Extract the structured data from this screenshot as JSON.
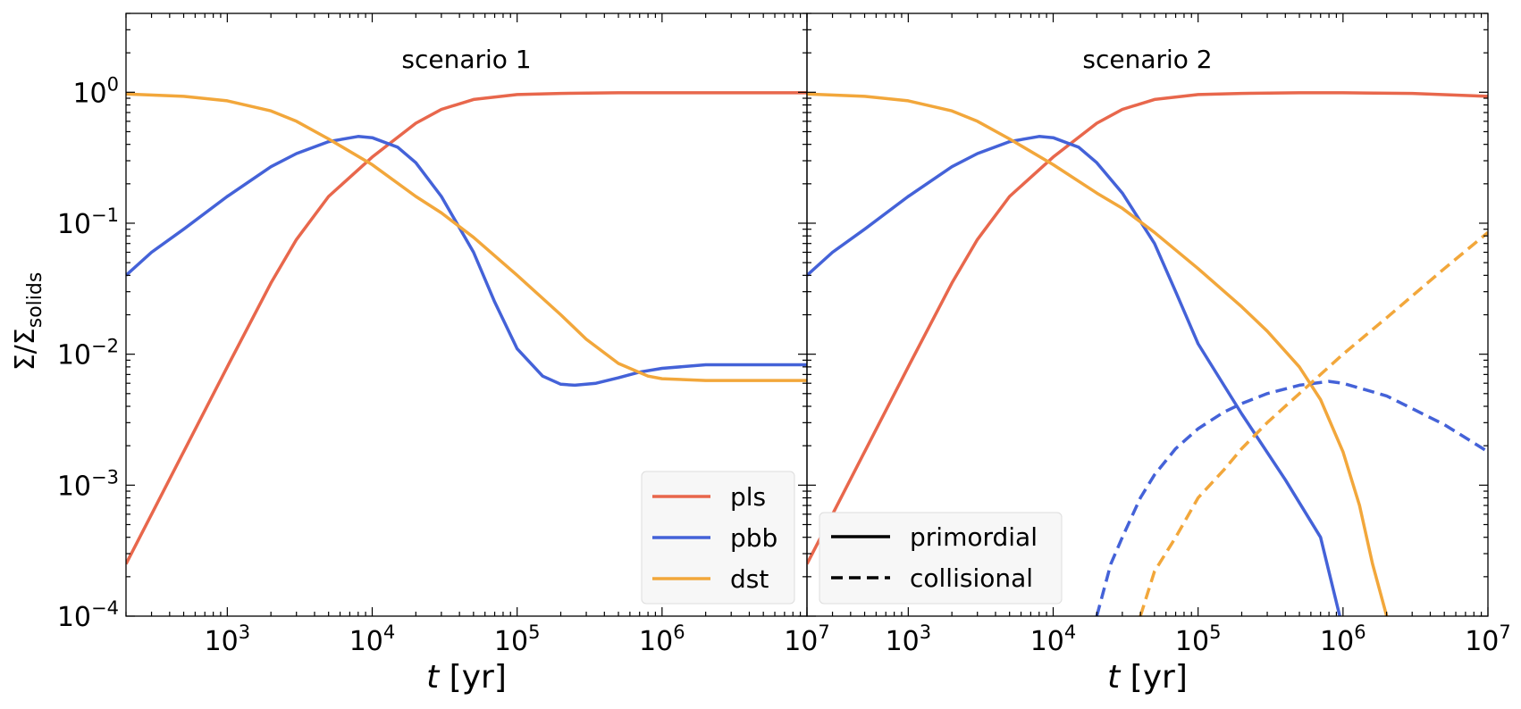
{
  "chart_data": [
    {
      "type": "line",
      "title": "scenario 1",
      "xlabel_italic": "t",
      "xlabel_rest": " [yr]",
      "ylabel_main": "Σ/Σ",
      "ylabel_sub": "solids",
      "xscale": "log",
      "yscale": "log",
      "xlim": [
        200,
        10000000
      ],
      "ylim": [
        0.0001,
        4
      ],
      "x_ticks": [
        {
          "value": 1000,
          "base": "10",
          "exp": "3"
        },
        {
          "value": 10000,
          "base": "10",
          "exp": "4"
        },
        {
          "value": 100000,
          "base": "10",
          "exp": "5"
        },
        {
          "value": 1000000,
          "base": "10",
          "exp": "6"
        },
        {
          "value": 10000000,
          "base": "10",
          "exp": "7"
        }
      ],
      "y_ticks": [
        {
          "value": 1,
          "base": "10",
          "exp": "0"
        },
        {
          "value": 0.1,
          "base": "10",
          "exp": "−1"
        },
        {
          "value": 0.01,
          "base": "10",
          "exp": "−2"
        },
        {
          "value": 0.001,
          "base": "10",
          "exp": "−3"
        },
        {
          "value": 0.0001,
          "base": "10",
          "exp": "−4"
        }
      ],
      "series": [
        {
          "name": "pls",
          "color": "#e8674c",
          "dash": "solid",
          "x": [
            200,
            300,
            500,
            1000,
            2000,
            3000,
            5000,
            10000,
            20000,
            30000,
            50000,
            100000,
            200000,
            500000,
            1000000,
            3000000,
            10000000
          ],
          "y": [
            0.00025,
            0.0006,
            0.0018,
            0.008,
            0.035,
            0.075,
            0.16,
            0.32,
            0.58,
            0.74,
            0.88,
            0.96,
            0.98,
            0.99,
            0.99,
            0.99,
            0.99
          ]
        },
        {
          "name": "pbb",
          "color": "#4462d8",
          "dash": "solid",
          "x": [
            200,
            300,
            500,
            1000,
            2000,
            3000,
            5000,
            8000,
            10000,
            15000,
            20000,
            30000,
            50000,
            70000,
            100000,
            150000,
            200000,
            250000,
            350000,
            500000,
            700000,
            1000000,
            2000000,
            5000000,
            10000000
          ],
          "y": [
            0.04,
            0.06,
            0.09,
            0.16,
            0.27,
            0.34,
            0.42,
            0.46,
            0.45,
            0.38,
            0.29,
            0.16,
            0.06,
            0.025,
            0.011,
            0.0068,
            0.0059,
            0.0058,
            0.006,
            0.0066,
            0.0073,
            0.0078,
            0.0083,
            0.0083,
            0.0083
          ]
        },
        {
          "name": "dst",
          "color": "#f2a73b",
          "dash": "solid",
          "x": [
            200,
            500,
            1000,
            2000,
            3000,
            5000,
            10000,
            20000,
            30000,
            50000,
            100000,
            200000,
            300000,
            500000,
            800000,
            1000000,
            2000000,
            5000000,
            10000000
          ],
          "y": [
            0.97,
            0.93,
            0.86,
            0.72,
            0.6,
            0.44,
            0.28,
            0.16,
            0.12,
            0.078,
            0.04,
            0.02,
            0.013,
            0.0085,
            0.0068,
            0.0065,
            0.0063,
            0.0063,
            0.0063
          ]
        }
      ],
      "legend": {
        "placement": "lower right",
        "entries": [
          "pls",
          "pbb",
          "dst"
        ]
      }
    },
    {
      "type": "line",
      "title": "scenario 2",
      "xlabel_italic": "t",
      "xlabel_rest": " [yr]",
      "xscale": "log",
      "yscale": "log",
      "xlim": [
        200,
        10000000
      ],
      "ylim": [
        0.0001,
        4
      ],
      "x_ticks": [
        {
          "value": 1000,
          "base": "10",
          "exp": "3"
        },
        {
          "value": 10000,
          "base": "10",
          "exp": "4"
        },
        {
          "value": 100000,
          "base": "10",
          "exp": "5"
        },
        {
          "value": 1000000,
          "base": "10",
          "exp": "6"
        },
        {
          "value": 10000000,
          "base": "10",
          "exp": "7"
        }
      ],
      "series": [
        {
          "name": "pls",
          "color": "#e8674c",
          "dash": "solid",
          "x": [
            200,
            300,
            500,
            1000,
            2000,
            3000,
            5000,
            10000,
            20000,
            30000,
            50000,
            100000,
            200000,
            500000,
            1000000,
            3000000,
            10000000
          ],
          "y": [
            0.00025,
            0.0006,
            0.0018,
            0.008,
            0.035,
            0.075,
            0.16,
            0.32,
            0.58,
            0.74,
            0.88,
            0.96,
            0.98,
            0.99,
            0.99,
            0.98,
            0.93
          ]
        },
        {
          "name": "pbb",
          "color": "#4462d8",
          "dash": "solid",
          "x": [
            200,
            300,
            500,
            1000,
            2000,
            3000,
            5000,
            8000,
            10000,
            15000,
            20000,
            30000,
            50000,
            70000,
            100000,
            200000,
            400000,
            700000,
            950000
          ],
          "y": [
            0.04,
            0.06,
            0.09,
            0.16,
            0.27,
            0.34,
            0.42,
            0.46,
            0.45,
            0.38,
            0.29,
            0.17,
            0.07,
            0.03,
            0.012,
            0.0035,
            0.0011,
            0.0004,
            0.0001
          ]
        },
        {
          "name": "dst",
          "color": "#f2a73b",
          "dash": "solid",
          "x": [
            200,
            500,
            1000,
            2000,
            3000,
            5000,
            10000,
            20000,
            30000,
            50000,
            100000,
            200000,
            300000,
            500000,
            700000,
            1000000,
            1300000,
            1600000,
            2000000
          ],
          "y": [
            0.97,
            0.93,
            0.86,
            0.72,
            0.6,
            0.44,
            0.28,
            0.17,
            0.13,
            0.085,
            0.045,
            0.023,
            0.015,
            0.008,
            0.0045,
            0.0018,
            0.0007,
            0.00025,
            0.0001
          ]
        },
        {
          "name": "pbb",
          "color": "#4462d8",
          "dash": "dashed",
          "x": [
            20000,
            25000,
            30000,
            40000,
            50000,
            70000,
            100000,
            150000,
            200000,
            300000,
            500000,
            800000,
            1000000,
            2000000,
            5000000,
            10000000
          ],
          "y": [
            0.0001,
            0.00025,
            0.0004,
            0.0008,
            0.0012,
            0.0019,
            0.0027,
            0.0036,
            0.0042,
            0.005,
            0.0058,
            0.0062,
            0.006,
            0.0048,
            0.0029,
            0.0018
          ]
        },
        {
          "name": "dst",
          "color": "#f2a73b",
          "dash": "dashed",
          "x": [
            40000,
            50000,
            70000,
            100000,
            150000,
            200000,
            300000,
            500000,
            1000000,
            2000000,
            5000000,
            10000000
          ],
          "y": [
            0.0001,
            0.00022,
            0.0004,
            0.0008,
            0.0013,
            0.0019,
            0.003,
            0.005,
            0.01,
            0.019,
            0.045,
            0.085
          ]
        }
      ],
      "legend": {
        "placement": "lower left",
        "entries": [
          "primordial",
          "collisional"
        ]
      }
    }
  ]
}
